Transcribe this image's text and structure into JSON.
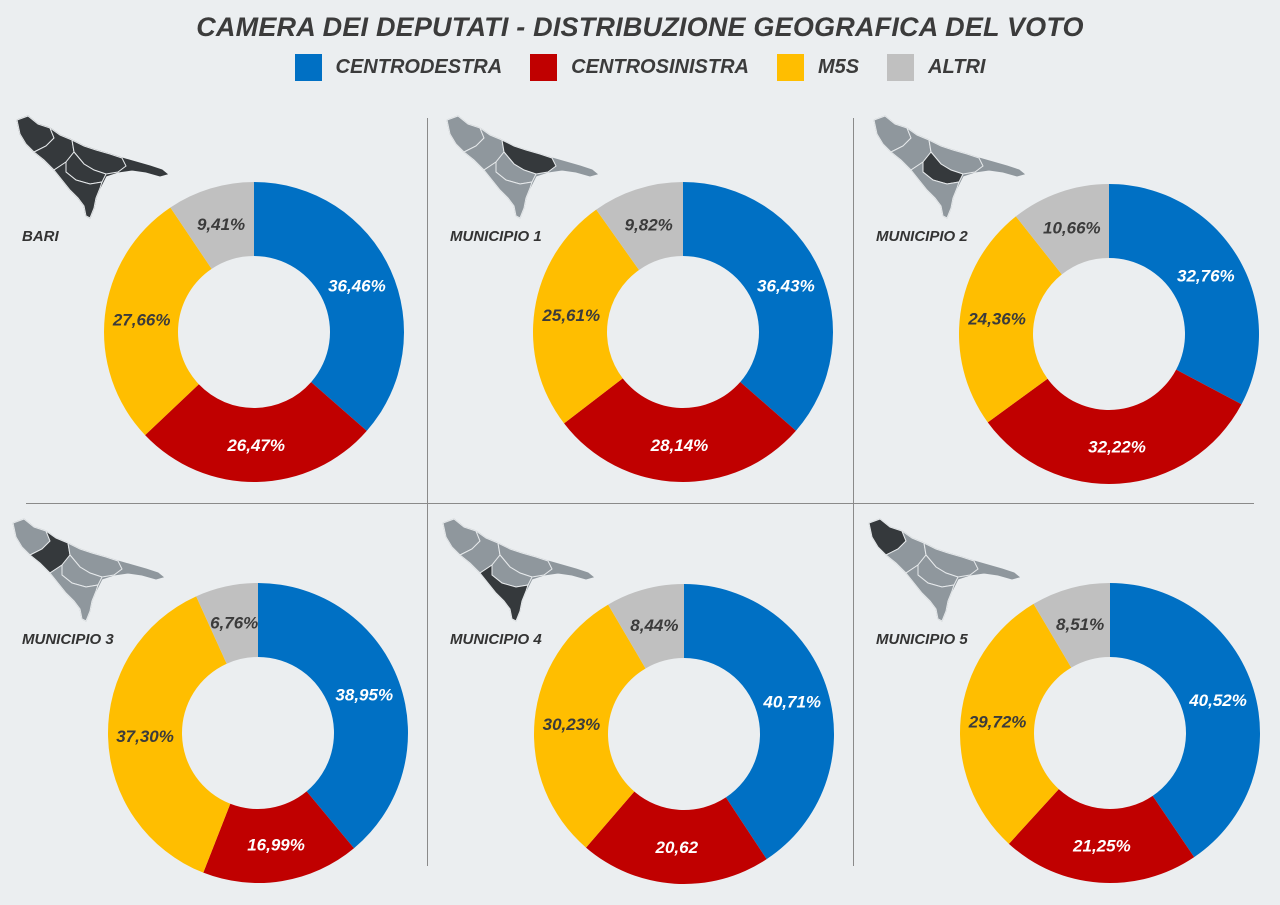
{
  "header": {
    "title": "CAMERA DEI DEPUTATI - DISTRIBUZIONE GEOGRAFICA DEL VOTO"
  },
  "legend": [
    {
      "label": "CENTRODESTRA",
      "color": "#0070c4"
    },
    {
      "label": "CENTROSINISTRA",
      "color": "#c00000"
    },
    {
      "label": "M5S",
      "color": "#ffbe00"
    },
    {
      "label": "ALTRI",
      "color": "#c0c0c0"
    }
  ],
  "chart_data": [
    {
      "type": "pie",
      "title": "BARI",
      "highlight": "all",
      "categories": [
        "CENTRODESTRA",
        "CENTROSINISTRA",
        "M5S",
        "ALTRI"
      ],
      "values": [
        36.46,
        26.47,
        27.66,
        9.41
      ],
      "labels": [
        "36,46%",
        "26,47%",
        "27,66%",
        "9,41%"
      ]
    },
    {
      "type": "pie",
      "title": "MUNICIPIO 1",
      "highlight": "municipio-1",
      "categories": [
        "CENTRODESTRA",
        "CENTROSINISTRA",
        "M5S",
        "ALTRI"
      ],
      "values": [
        36.43,
        28.14,
        25.61,
        9.82
      ],
      "labels": [
        "36,43%",
        "28,14%",
        "25,61%",
        "9,82%"
      ]
    },
    {
      "type": "pie",
      "title": "MUNICIPIO 2",
      "highlight": "municipio-2",
      "categories": [
        "CENTRODESTRA",
        "CENTROSINISTRA",
        "M5S",
        "ALTRI"
      ],
      "values": [
        32.76,
        32.22,
        24.36,
        10.66
      ],
      "labels": [
        "32,76%",
        "32,22%",
        "24,36%",
        "10,66%"
      ]
    },
    {
      "type": "pie",
      "title": "MUNICIPIO 3",
      "highlight": "municipio-3",
      "categories": [
        "CENTRODESTRA",
        "CENTROSINISTRA",
        "M5S",
        "ALTRI"
      ],
      "values": [
        38.95,
        16.99,
        37.3,
        6.76
      ],
      "labels": [
        "38,95%",
        "16,99%",
        "37,30%",
        "6,76%"
      ]
    },
    {
      "type": "pie",
      "title": "MUNICIPIO 4",
      "highlight": "municipio-4",
      "categories": [
        "CENTRODESTRA",
        "CENTROSINISTRA",
        "M5S",
        "ALTRI"
      ],
      "values": [
        40.71,
        20.62,
        30.23,
        8.44
      ],
      "labels": [
        "40,71%",
        "20,62",
        "30,23%",
        "8,44%"
      ]
    },
    {
      "type": "pie",
      "title": "MUNICIPIO 5",
      "highlight": "municipio-5",
      "categories": [
        "CENTRODESTRA",
        "CENTROSINISTRA",
        "M5S",
        "ALTRI"
      ],
      "values": [
        40.52,
        21.25,
        29.72,
        8.51
      ],
      "labels": [
        "40,52%",
        "21,25%",
        "29,72%",
        "8,51%"
      ]
    }
  ]
}
